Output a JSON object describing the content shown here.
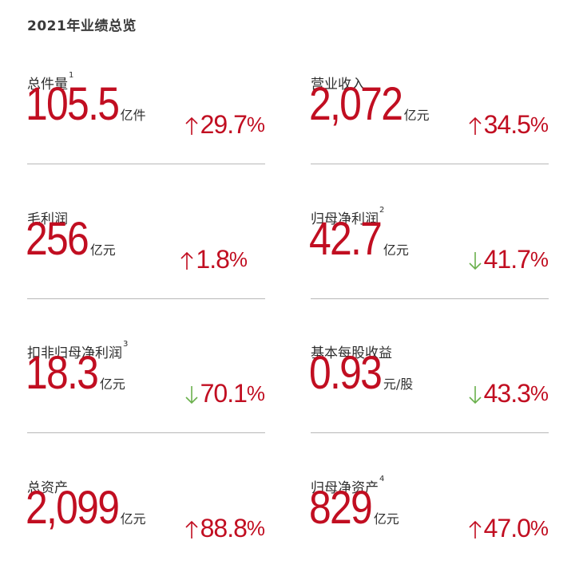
{
  "page_title": "2021年业绩总览",
  "colors": {
    "value_red": "#c10e21",
    "up_arrow": "#c10e21",
    "down_arrow": "#6ab04c",
    "divider": "#b8b8b8"
  },
  "metrics": [
    {
      "label": "总件量",
      "note": "1",
      "value": "105.5",
      "unit": "亿件",
      "direction": "up",
      "change": "29.7",
      "pct_sign": "%"
    },
    {
      "label": "营业收入",
      "note": "",
      "value": "2,072",
      "unit": "亿元",
      "direction": "up",
      "change": "34.5",
      "pct_sign": "%"
    },
    {
      "label": "毛利润",
      "note": "",
      "value": "256",
      "unit": "亿元",
      "direction": "up",
      "change": "1.8",
      "pct_sign": "%"
    },
    {
      "label": "归母净利润",
      "note": "2",
      "value": "42.7",
      "unit": "亿元",
      "direction": "down",
      "change": "41.7",
      "pct_sign": "%"
    },
    {
      "label": "扣非归母净利润",
      "note": "3",
      "value": "18.3",
      "unit": "亿元",
      "direction": "down",
      "change": "70.1",
      "pct_sign": "%"
    },
    {
      "label": "基本每股收益",
      "note": "",
      "value": "0.93",
      "unit": "元/股",
      "direction": "down",
      "change": "43.3",
      "pct_sign": "%"
    },
    {
      "label": "总资产",
      "note": "",
      "value": "2,099",
      "unit": "亿元",
      "direction": "up",
      "change": "88.8",
      "pct_sign": "%"
    },
    {
      "label": "归母净资产",
      "note": "4",
      "value": "829",
      "unit": "亿元",
      "direction": "up",
      "change": "47.0",
      "pct_sign": "%"
    }
  ]
}
